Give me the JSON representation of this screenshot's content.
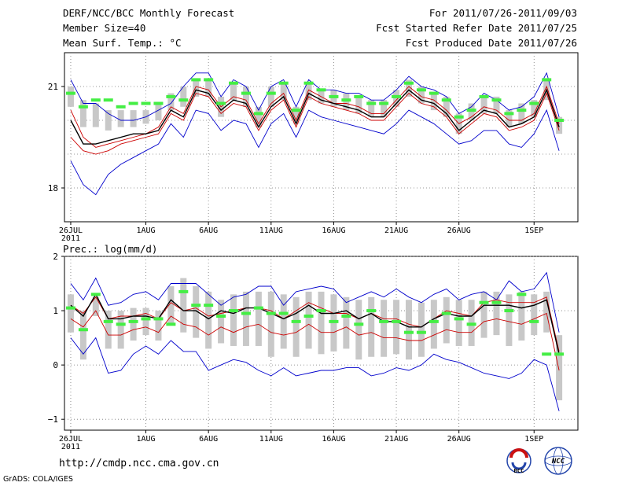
{
  "header": {
    "left": [
      "DERF/NCC/BCC Monthly Forecast",
      "Member Size=40",
      "Mean Surf. Temp.: °C"
    ],
    "right": [
      "For 2011/07/26-2011/09/03",
      "Fcst Started Refer Date 2011/07/25",
      "Fcst Produced Date 2011/07/26"
    ]
  },
  "footer": {
    "url": "http://cmdp.ncc.cma.gov.cn",
    "credit": "GrADS: COLA/IGES",
    "logo1_text": "BCC",
    "logo2_text": "NCC"
  },
  "colors": {
    "max_min": "#0000cc",
    "pct": "#cc0000",
    "mean": "#000000",
    "observed": "#44ee44",
    "box": "#c8c8c8"
  },
  "chart_data": [
    {
      "type": "line",
      "title": "Mean Surf. Temp.: °C",
      "x_start_day": 1,
      "x_end_day": 41,
      "x_ticks": [
        {
          "day": 1,
          "label": "26JUL",
          "sub": "2011"
        },
        {
          "day": 7,
          "label": "1AUG"
        },
        {
          "day": 12,
          "label": "6AUG"
        },
        {
          "day": 17,
          "label": "11AUG"
        },
        {
          "day": 22,
          "label": "16AUG"
        },
        {
          "day": 27,
          "label": "21AUG"
        },
        {
          "day": 32,
          "label": "26AUG"
        },
        {
          "day": 38,
          "label": "1SEP"
        }
      ],
      "ylim": [
        17.0,
        22.0
      ],
      "y_ticks": [
        18,
        21
      ],
      "y_tick_labels": [
        "18",
        "21"
      ],
      "y_grid": [
        18,
        19,
        20,
        21
      ],
      "series": [
        {
          "name": "max",
          "values": [
            21.2,
            20.5,
            20.5,
            20.2,
            20.0,
            20.0,
            20.1,
            20.3,
            20.5,
            21.0,
            21.4,
            21.4,
            20.7,
            21.2,
            21.0,
            20.3,
            21.0,
            21.2,
            20.4,
            21.2,
            20.9,
            20.9,
            20.8,
            20.8,
            20.6,
            20.6,
            20.9,
            21.3,
            21.0,
            20.9,
            20.7,
            20.2,
            20.4,
            20.8,
            20.6,
            20.3,
            20.4,
            20.7,
            21.4,
            20.1
          ]
        },
        {
          "name": "p90",
          "values": [
            20.3,
            19.5,
            19.2,
            19.3,
            19.4,
            19.5,
            19.6,
            19.8,
            20.4,
            20.2,
            21.0,
            20.9,
            20.4,
            20.7,
            20.6,
            19.9,
            20.5,
            20.8,
            20.0,
            20.9,
            20.7,
            20.5,
            20.5,
            20.4,
            20.2,
            20.2,
            20.6,
            21.0,
            20.7,
            20.6,
            20.3,
            19.9,
            20.1,
            20.4,
            20.3,
            20.0,
            20.0,
            20.2,
            21.0,
            19.9
          ]
        },
        {
          "name": "mean",
          "values": [
            20.0,
            19.3,
            19.3,
            19.4,
            19.5,
            19.6,
            19.6,
            19.7,
            20.3,
            20.1,
            20.9,
            20.8,
            20.3,
            20.6,
            20.5,
            19.8,
            20.4,
            20.7,
            19.9,
            20.8,
            20.6,
            20.5,
            20.4,
            20.3,
            20.1,
            20.1,
            20.5,
            20.9,
            20.6,
            20.5,
            20.2,
            19.7,
            20.0,
            20.3,
            20.2,
            19.8,
            19.9,
            20.1,
            20.9,
            19.8
          ]
        },
        {
          "name": "p10",
          "values": [
            19.5,
            19.1,
            19.0,
            19.1,
            19.3,
            19.4,
            19.5,
            19.6,
            20.2,
            20.0,
            20.8,
            20.7,
            20.2,
            20.5,
            20.4,
            19.7,
            20.3,
            20.6,
            19.8,
            20.7,
            20.5,
            20.4,
            20.3,
            20.2,
            20.0,
            20.0,
            20.4,
            20.8,
            20.5,
            20.4,
            20.1,
            19.6,
            19.9,
            20.2,
            20.1,
            19.7,
            19.8,
            20.0,
            20.8,
            19.7
          ]
        },
        {
          "name": "min",
          "values": [
            18.8,
            18.1,
            17.8,
            18.4,
            18.7,
            18.9,
            19.1,
            19.3,
            19.9,
            19.5,
            20.3,
            20.2,
            19.7,
            20.0,
            19.9,
            19.2,
            19.9,
            20.2,
            19.5,
            20.3,
            20.1,
            20.0,
            19.9,
            19.8,
            19.7,
            19.6,
            19.9,
            20.3,
            20.1,
            19.9,
            19.6,
            19.3,
            19.4,
            19.7,
            19.7,
            19.3,
            19.2,
            19.6,
            20.3,
            19.1
          ]
        },
        {
          "name": "observed",
          "values": [
            20.8,
            20.4,
            20.6,
            20.6,
            20.4,
            20.5,
            20.5,
            20.5,
            20.7,
            20.6,
            21.2,
            21.2,
            20.5,
            21.1,
            20.8,
            20.2,
            20.8,
            21.1,
            20.3,
            21.1,
            20.9,
            20.7,
            20.6,
            20.7,
            20.5,
            20.5,
            20.7,
            21.1,
            20.9,
            20.8,
            20.6,
            20.1,
            20.3,
            20.7,
            20.6,
            20.2,
            20.3,
            20.5,
            21.2,
            20.0
          ]
        }
      ],
      "box_top": [
        21.0,
        20.6,
        20.5,
        20.3,
        20.3,
        20.3,
        20.3,
        20.5,
        20.8,
        21.0,
        21.2,
        21.2,
        20.7,
        21.1,
        21.0,
        20.4,
        21.0,
        21.1,
        20.4,
        21.1,
        20.9,
        20.9,
        20.8,
        20.7,
        20.6,
        20.6,
        20.9,
        21.2,
        21.0,
        20.8,
        20.7,
        20.2,
        20.5,
        20.7,
        20.7,
        20.3,
        20.5,
        20.6,
        21.2,
        20.1
      ],
      "box_bottom": [
        20.4,
        19.8,
        19.8,
        19.7,
        19.8,
        19.8,
        19.9,
        20.0,
        20.3,
        20.4,
        20.7,
        20.7,
        20.1,
        20.6,
        20.4,
        19.8,
        20.4,
        20.6,
        19.9,
        20.6,
        20.5,
        20.4,
        20.3,
        20.2,
        20.1,
        20.1,
        20.4,
        20.7,
        20.5,
        20.3,
        20.1,
        19.6,
        20.0,
        20.2,
        20.2,
        19.8,
        19.9,
        20.1,
        20.6,
        19.6
      ]
    },
    {
      "type": "line",
      "title": "Prec.: log(mm/d)",
      "x_start_day": 1,
      "x_end_day": 41,
      "x_ticks": [
        {
          "day": 1,
          "label": "26JUL",
          "sub": "2011"
        },
        {
          "day": 7,
          "label": "1AUG"
        },
        {
          "day": 12,
          "label": "6AUG"
        },
        {
          "day": 17,
          "label": "11AUG"
        },
        {
          "day": 22,
          "label": "16AUG"
        },
        {
          "day": 27,
          "label": "21AUG"
        },
        {
          "day": 32,
          "label": "26AUG"
        },
        {
          "day": 38,
          "label": "1SEP"
        }
      ],
      "ylim": [
        -1.2,
        2.0
      ],
      "y_ticks": [
        -1,
        0,
        1,
        2
      ],
      "y_tick_labels": [
        "−1",
        "0",
        "1",
        "2"
      ],
      "y_grid": [
        -1,
        0,
        1,
        2
      ],
      "series": [
        {
          "name": "max",
          "values": [
            1.5,
            1.2,
            1.6,
            1.1,
            1.15,
            1.3,
            1.35,
            1.2,
            1.5,
            1.5,
            1.5,
            1.3,
            1.1,
            1.25,
            1.3,
            1.45,
            1.45,
            1.1,
            1.35,
            1.4,
            1.45,
            1.4,
            1.15,
            1.25,
            1.35,
            1.25,
            1.4,
            1.25,
            1.15,
            1.3,
            1.4,
            1.2,
            1.3,
            1.35,
            1.2,
            1.55,
            1.35,
            1.4,
            1.7,
            0.6
          ]
        },
        {
          "name": "p90",
          "values": [
            1.1,
            0.95,
            1.25,
            0.85,
            0.9,
            0.9,
            0.95,
            0.85,
            1.15,
            1.0,
            1.05,
            0.9,
            0.95,
            1.0,
            1.05,
            1.05,
            1.0,
            0.85,
            1.0,
            1.15,
            1.05,
            0.95,
            0.95,
            0.85,
            0.95,
            0.85,
            0.85,
            0.75,
            0.7,
            0.85,
            1.0,
            0.95,
            0.9,
            1.15,
            1.2,
            1.15,
            1.15,
            1.15,
            1.25,
            0.25
          ]
        },
        {
          "name": "mean",
          "values": [
            1.1,
            0.9,
            1.3,
            0.85,
            0.85,
            0.9,
            0.9,
            0.85,
            1.2,
            1.0,
            1.0,
            0.85,
            1.0,
            0.95,
            1.05,
            1.05,
            0.95,
            0.85,
            0.95,
            1.1,
            0.95,
            0.95,
            1.0,
            0.85,
            0.95,
            0.8,
            0.8,
            0.7,
            0.7,
            0.85,
            0.95,
            0.9,
            0.9,
            1.1,
            1.1,
            1.1,
            1.05,
            1.1,
            1.2,
            0.2
          ]
        },
        {
          "name": "p10",
          "values": [
            0.85,
            0.7,
            1.0,
            0.55,
            0.55,
            0.65,
            0.7,
            0.6,
            0.9,
            0.75,
            0.7,
            0.55,
            0.7,
            0.6,
            0.7,
            0.75,
            0.6,
            0.55,
            0.6,
            0.75,
            0.6,
            0.6,
            0.7,
            0.55,
            0.6,
            0.5,
            0.5,
            0.45,
            0.45,
            0.55,
            0.65,
            0.6,
            0.6,
            0.8,
            0.85,
            0.8,
            0.75,
            0.85,
            0.95,
            -0.1
          ]
        },
        {
          "name": "min",
          "values": [
            0.5,
            0.2,
            0.5,
            -0.15,
            -0.1,
            0.2,
            0.35,
            0.2,
            0.45,
            0.25,
            0.25,
            -0.1,
            0.0,
            0.1,
            0.05,
            -0.1,
            -0.2,
            -0.05,
            -0.2,
            -0.15,
            -0.1,
            -0.1,
            -0.05,
            -0.05,
            -0.2,
            -0.15,
            -0.05,
            -0.1,
            0.0,
            0.2,
            0.1,
            0.05,
            -0.05,
            -0.15,
            -0.2,
            -0.25,
            -0.15,
            0.1,
            0.0,
            -0.85
          ]
        },
        {
          "name": "observed",
          "values": [
            1.05,
            0.65,
            1.3,
            0.8,
            0.75,
            0.8,
            0.85,
            0.85,
            0.75,
            1.35,
            1.1,
            1.1,
            0.9,
            1.0,
            0.95,
            1.05,
            0.95,
            0.95,
            0.8,
            0.9,
            1.0,
            0.8,
            0.9,
            0.75,
            1.0,
            0.8,
            0.8,
            0.6,
            0.6,
            0.8,
            0.95,
            0.85,
            0.75,
            1.15,
            1.15,
            1.0,
            1.3,
            0.8,
            0.2,
            0.2
          ]
        }
      ],
      "box_top": [
        1.3,
        1.0,
        1.25,
        1.0,
        1.0,
        1.05,
        1.05,
        1.0,
        1.45,
        1.6,
        1.45,
        1.35,
        1.2,
        1.3,
        1.35,
        1.35,
        1.35,
        1.3,
        1.25,
        1.35,
        1.35,
        1.3,
        1.25,
        1.2,
        1.25,
        1.2,
        1.2,
        1.2,
        1.15,
        1.2,
        1.25,
        1.2,
        1.2,
        1.35,
        1.35,
        1.3,
        1.35,
        1.3,
        1.35,
        0.55
      ],
      "box_bottom": [
        0.6,
        0.1,
        0.9,
        0.3,
        0.3,
        0.45,
        0.55,
        0.45,
        0.75,
        0.6,
        0.5,
        0.3,
        0.4,
        0.35,
        0.35,
        0.35,
        0.15,
        0.3,
        0.15,
        0.3,
        0.2,
        0.25,
        0.3,
        0.1,
        0.15,
        0.15,
        0.2,
        0.1,
        0.15,
        0.3,
        0.4,
        0.35,
        0.35,
        0.5,
        0.55,
        0.35,
        0.45,
        0.55,
        0.6,
        -0.65
      ]
    }
  ]
}
